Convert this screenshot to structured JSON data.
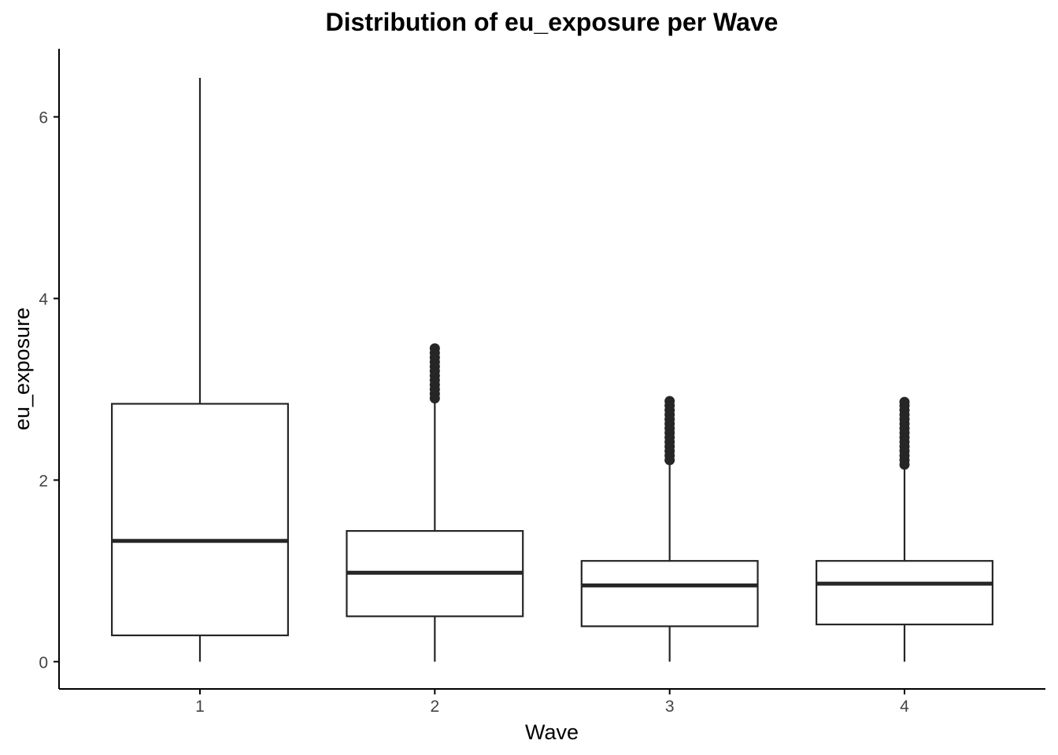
{
  "chart_data": {
    "type": "boxplot",
    "title": "Distribution of eu_exposure per Wave",
    "xlabel": "Wave",
    "ylabel": "eu_exposure",
    "categories": [
      "1",
      "2",
      "3",
      "4"
    ],
    "y_ticks": [
      "0",
      "2",
      "4",
      "6"
    ],
    "ylim": [
      -0.3,
      6.75
    ],
    "grid": false,
    "legend": "none",
    "boxes": [
      {
        "category": "1",
        "min": 0.0,
        "q1": 0.29,
        "median": 1.33,
        "q3": 2.84,
        "max": 6.43,
        "outliers": []
      },
      {
        "category": "2",
        "min": 0.0,
        "q1": 0.5,
        "median": 0.98,
        "q3": 1.44,
        "max": 2.85,
        "outliers": [
          2.9,
          2.95,
          3.0,
          3.05,
          3.1,
          3.15,
          3.2,
          3.25,
          3.3,
          3.35,
          3.4,
          3.45
        ]
      },
      {
        "category": "3",
        "min": 0.0,
        "q1": 0.39,
        "median": 0.84,
        "q3": 1.11,
        "max": 2.19,
        "outliers": [
          2.22,
          2.27,
          2.32,
          2.37,
          2.42,
          2.47,
          2.52,
          2.57,
          2.62,
          2.67,
          2.72,
          2.77,
          2.82,
          2.87
        ]
      },
      {
        "category": "4",
        "min": 0.0,
        "q1": 0.41,
        "median": 0.86,
        "q3": 1.11,
        "max": 2.14,
        "outliers": [
          2.17,
          2.22,
          2.27,
          2.32,
          2.37,
          2.42,
          2.47,
          2.52,
          2.57,
          2.62,
          2.67,
          2.72,
          2.77,
          2.82,
          2.86
        ]
      }
    ],
    "colors": {
      "line": "#262626",
      "axis": "#000000",
      "tick_text": "#444444",
      "background": "#ffffff"
    }
  }
}
